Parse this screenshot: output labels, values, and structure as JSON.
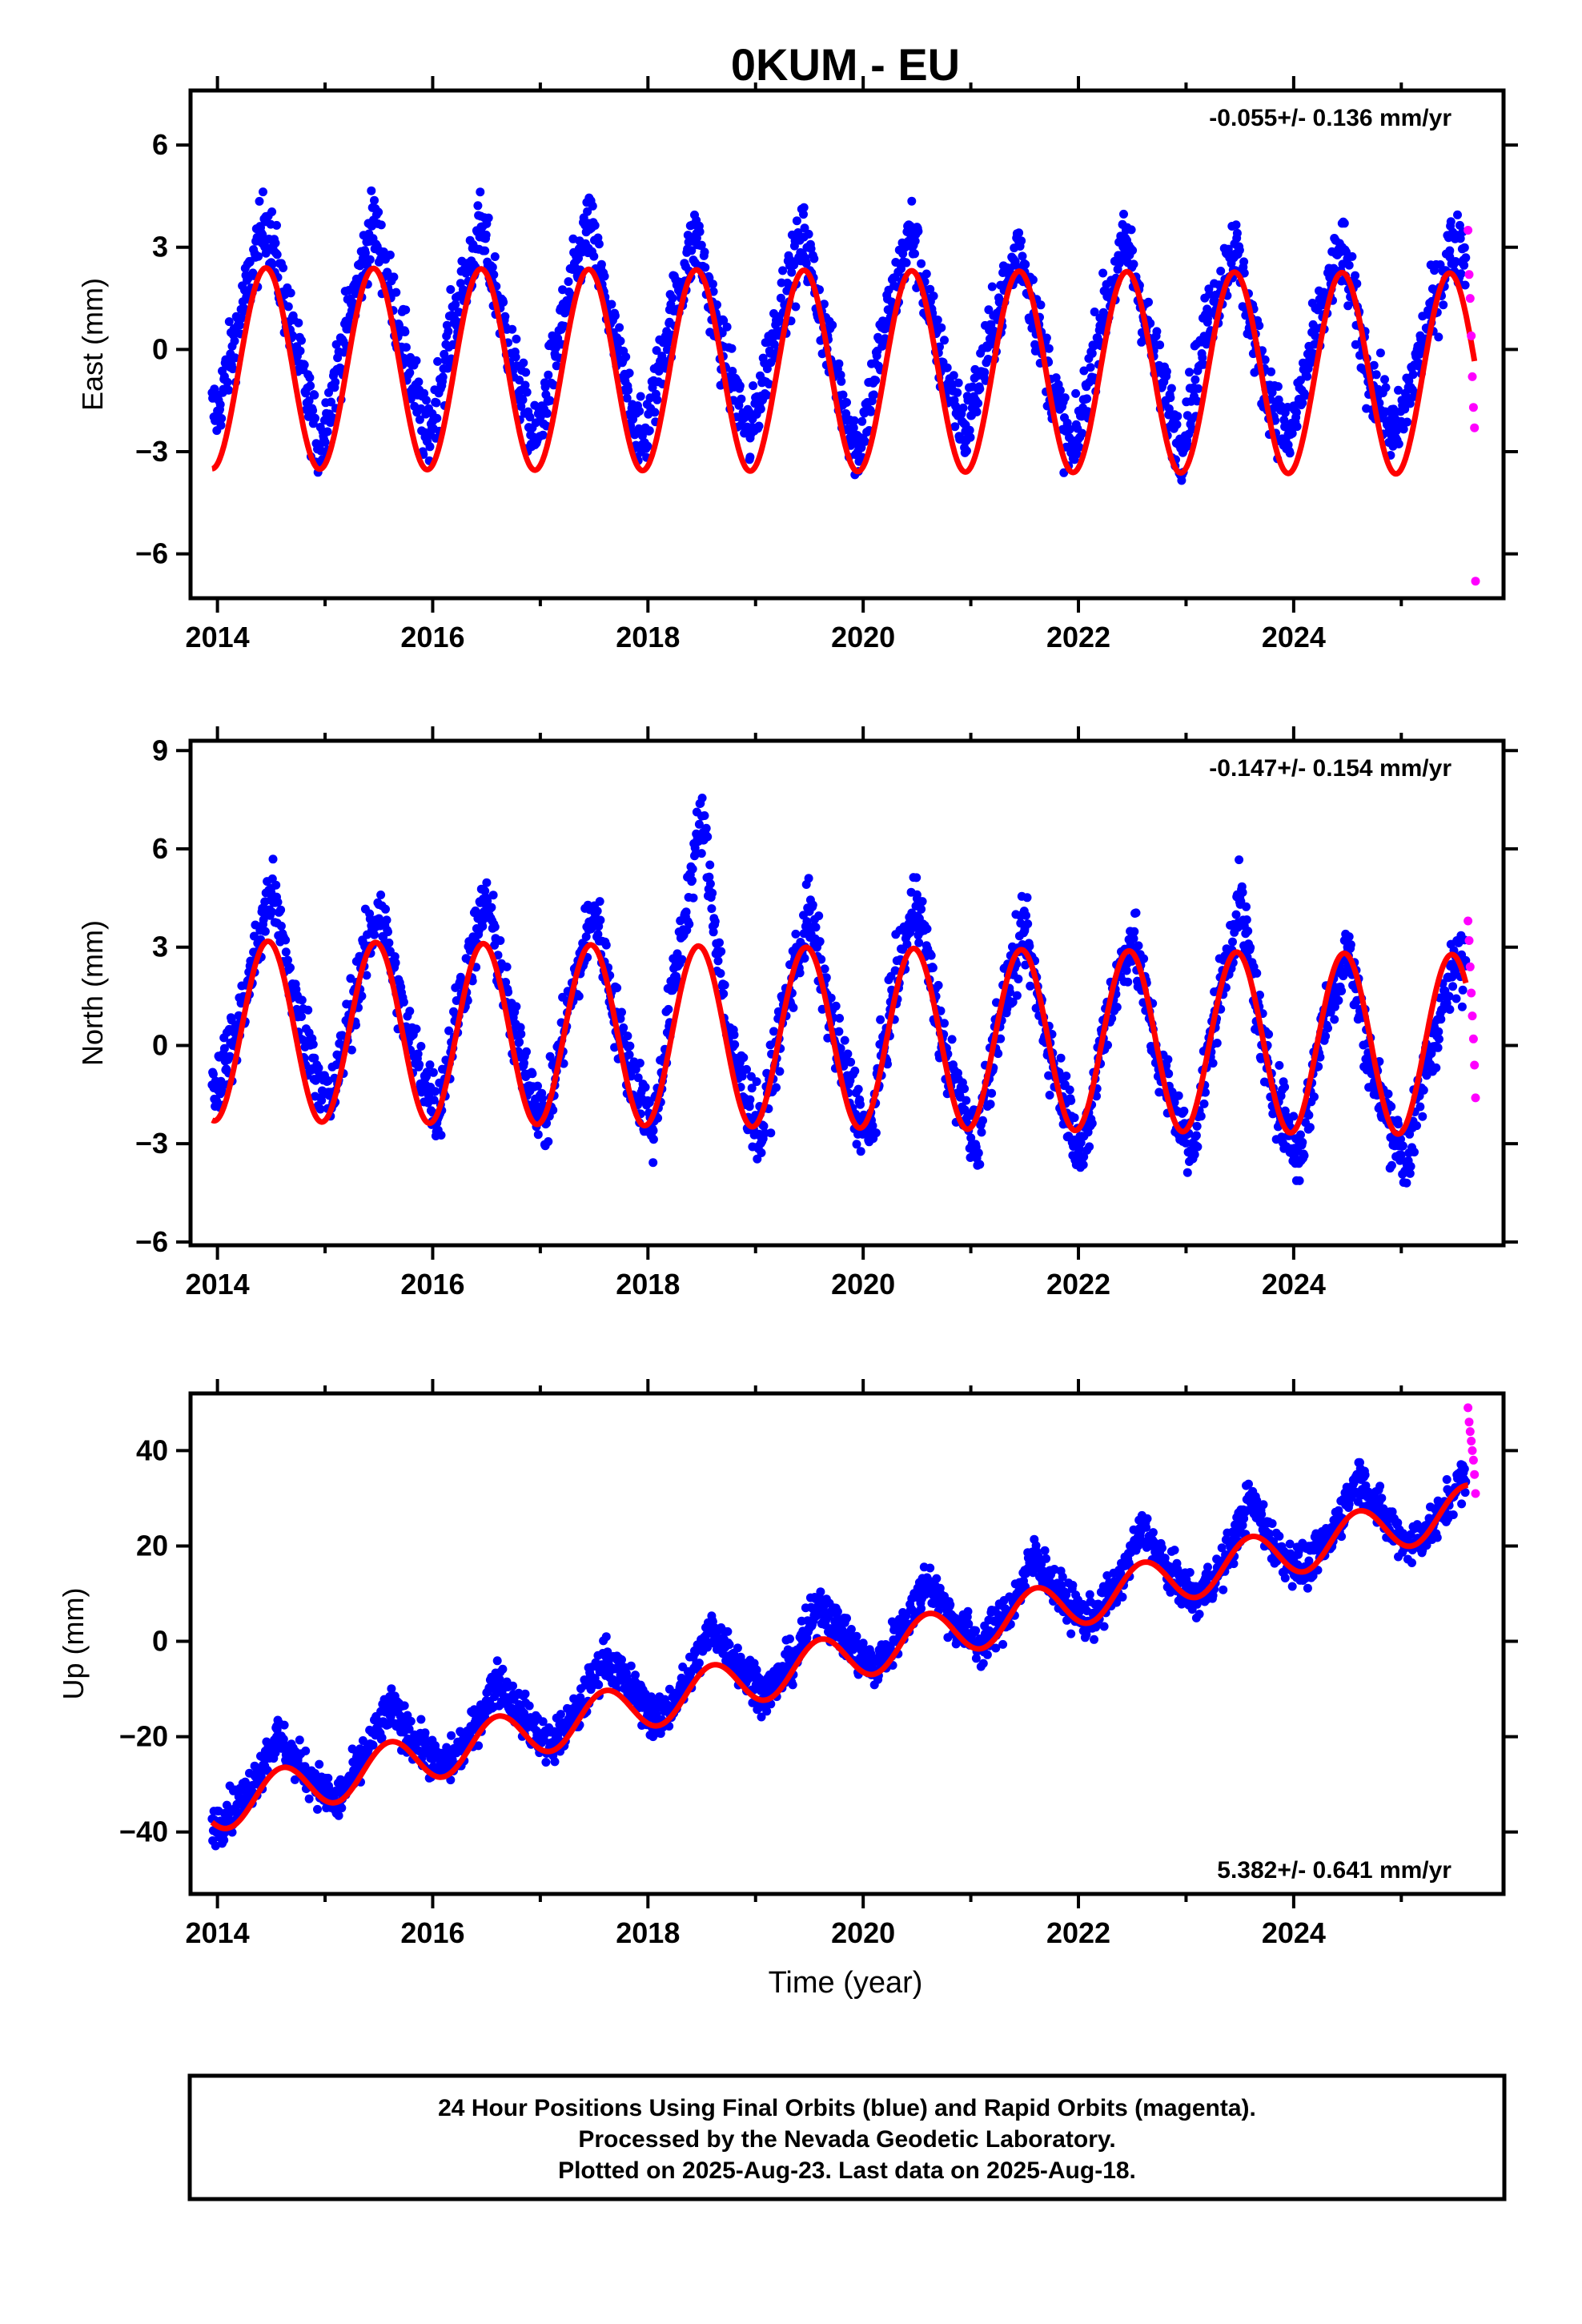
{
  "title": "0KUM - EU",
  "colors": {
    "final_orbits": "#0000ff",
    "rapid_orbits": "#ff00ff",
    "model": "#ff0000"
  },
  "x_axis": {
    "label": "Time (year)",
    "lim": [
      2013.75,
      2025.95
    ],
    "ticks": [
      2014,
      2016,
      2018,
      2020,
      2022,
      2024
    ],
    "tick_labels": [
      "2014",
      "2016",
      "2018",
      "2020",
      "2022",
      "2024"
    ]
  },
  "chart_data": [
    {
      "type": "scatter",
      "component": "east",
      "ylabel": "East (mm)",
      "ylim": [
        -7.3,
        7.6
      ],
      "yticks": [
        -6,
        -3,
        0,
        3,
        6
      ],
      "ytick_labels": [
        "−6",
        "−3",
        "0",
        "3",
        "6"
      ],
      "rate_text": "-0.055+/- 0.136 mm/yr",
      "rate_position": "top-right",
      "series": [
        {
          "name": "Final Orbits (blue)",
          "x": [
            2014.0,
            2014.2,
            2014.45,
            2014.7,
            2014.95,
            2015.2,
            2015.45,
            2015.7,
            2015.95,
            2016.2,
            2016.45,
            2016.7,
            2016.95,
            2017.2,
            2017.45,
            2017.7,
            2017.95,
            2018.2,
            2018.45,
            2018.7,
            2018.95,
            2019.2,
            2019.45,
            2019.7,
            2019.95,
            2020.2,
            2020.45,
            2020.7,
            2020.95,
            2021.2,
            2021.45,
            2021.7,
            2021.95,
            2022.2,
            2022.45,
            2022.7,
            2022.95,
            2023.2,
            2023.45,
            2023.7,
            2023.95,
            2024.2,
            2024.45,
            2024.7,
            2024.95,
            2025.2,
            2025.45
          ],
          "y": [
            -1.8,
            0.8,
            3.9,
            0.4,
            -2.9,
            0.6,
            3.8,
            0.5,
            -2.7,
            0.9,
            3.6,
            0.2,
            -2.8,
            0.7,
            3.7,
            0.1,
            -2.9,
            0.8,
            3.4,
            -0.2,
            -2.6,
            0.9,
            3.3,
            -0.3,
            -3.0,
            0.6,
            3.5,
            -0.1,
            -2.4,
            0.5,
            3.1,
            -0.4,
            -3.2,
            0.7,
            3.2,
            -0.2,
            -2.9,
            0.8,
            3.1,
            -0.6,
            -2.8,
            0.4,
            3.0,
            -0.8,
            -2.6,
            0.2,
            2.9
          ]
        },
        {
          "name": "Rapid Orbits (magenta)",
          "x": [
            2025.62,
            2025.63,
            2025.64,
            2025.65,
            2025.66,
            2025.67,
            2025.68,
            2025.69
          ],
          "y": [
            3.5,
            2.2,
            1.5,
            0.4,
            -0.8,
            -1.7,
            -2.3,
            -6.8
          ]
        },
        {
          "name": "Model fit",
          "amplitude": 2.95,
          "phase_peak": 0.45,
          "offset": 0.45,
          "rate": -0.055,
          "x_range": [
            2013.95,
            2025.68
          ]
        }
      ]
    },
    {
      "type": "scatter",
      "component": "north",
      "ylabel": "North (mm)",
      "ylim": [
        -6.1,
        9.3
      ],
      "yticks": [
        -6,
        -3,
        0,
        3,
        6,
        9
      ],
      "ytick_labels": [
        "−6",
        "−3",
        "0",
        "3",
        "6",
        "9"
      ],
      "rate_text": "-0.147+/- 0.154 mm/yr",
      "rate_position": "top-right",
      "series": [
        {
          "name": "Final Orbits (blue)",
          "x": [
            2014.0,
            2014.2,
            2014.5,
            2014.75,
            2015.05,
            2015.25,
            2015.5,
            2015.75,
            2016.05,
            2016.25,
            2016.5,
            2016.75,
            2017.05,
            2017.25,
            2017.5,
            2017.75,
            2018.05,
            2018.25,
            2018.5,
            2018.75,
            2019.05,
            2019.25,
            2019.5,
            2019.75,
            2020.05,
            2020.25,
            2020.5,
            2020.75,
            2021.05,
            2021.25,
            2021.5,
            2021.75,
            2022.05,
            2022.25,
            2022.5,
            2022.75,
            2023.05,
            2023.25,
            2023.5,
            2023.75,
            2024.05,
            2024.25,
            2024.5,
            2024.75,
            2025.05,
            2025.25,
            2025.5
          ],
          "y": [
            -1.2,
            0.6,
            4.8,
            0.9,
            -1.9,
            1.2,
            4.3,
            0.5,
            -2.1,
            1.4,
            4.5,
            0.3,
            -2.4,
            1.0,
            4.2,
            0.1,
            -2.6,
            2.1,
            7.0,
            0.2,
            -2.8,
            0.9,
            4.1,
            0.0,
            -2.9,
            1.1,
            4.6,
            -0.2,
            -3.1,
            0.7,
            3.5,
            -0.4,
            -3.4,
            0.8,
            3.4,
            -0.6,
            -3.3,
            0.5,
            4.5,
            -0.7,
            -3.5,
            0.4,
            3.0,
            -1.1,
            -3.6,
            -0.3,
            2.4
          ]
        },
        {
          "name": "Rapid Orbits (magenta)",
          "x": [
            2025.62,
            2025.63,
            2025.64,
            2025.65,
            2025.66,
            2025.67,
            2025.68,
            2025.69
          ],
          "y": [
            3.8,
            3.2,
            2.4,
            1.6,
            0.9,
            0.2,
            -0.6,
            -1.6
          ]
        },
        {
          "name": "Model fit",
          "amplitude": 2.75,
          "phase_peak": 0.47,
          "offset": 1.45,
          "rate": -0.147,
          "x_range": [
            2013.95,
            2025.6
          ]
        }
      ]
    },
    {
      "type": "scatter",
      "component": "up",
      "ylabel": "Up (mm)",
      "ylim": [
        -53,
        52
      ],
      "yticks": [
        -40,
        -20,
        0,
        20,
        40
      ],
      "ytick_labels": [
        "−40",
        "−20",
        "0",
        "20",
        "40"
      ],
      "rate_text": "5.382+/- 0.641 mm/yr",
      "rate_position": "bottom-right",
      "series": [
        {
          "name": "Final Orbits (blue)",
          "x": [
            2014.0,
            2014.25,
            2014.55,
            2014.8,
            2015.1,
            2015.3,
            2015.6,
            2015.85,
            2016.1,
            2016.35,
            2016.6,
            2016.85,
            2017.1,
            2017.35,
            2017.6,
            2017.85,
            2018.1,
            2018.35,
            2018.6,
            2018.85,
            2019.1,
            2019.35,
            2019.6,
            2019.85,
            2020.1,
            2020.35,
            2020.6,
            2020.85,
            2021.1,
            2021.35,
            2021.6,
            2021.85,
            2022.1,
            2022.35,
            2022.6,
            2022.85,
            2023.1,
            2023.35,
            2023.6,
            2023.85,
            2024.1,
            2024.35,
            2024.6,
            2024.85,
            2025.1,
            2025.35,
            2025.55
          ],
          "y": [
            -38,
            -33,
            -20,
            -27,
            -34,
            -27,
            -14,
            -21,
            -27,
            -20,
            -8,
            -16,
            -22,
            -15,
            -3,
            -10,
            -17,
            -9,
            3,
            -5,
            -11,
            -4,
            8,
            0,
            -6,
            2,
            13,
            4,
            -1,
            6,
            18,
            9,
            4,
            11,
            24,
            14,
            9,
            16,
            30,
            19,
            15,
            22,
            35,
            25,
            20,
            26,
            34
          ]
        },
        {
          "name": "Rapid Orbits (magenta)",
          "x": [
            2025.62,
            2025.63,
            2025.64,
            2025.65,
            2025.66,
            2025.67,
            2025.68,
            2025.69
          ],
          "y": [
            49,
            46,
            44,
            42,
            40,
            38,
            35,
            31
          ]
        },
        {
          "name": "Model fit",
          "amplitude": 5.0,
          "phase_peak": 0.6,
          "rate": 5.382,
          "x_range": [
            2013.95,
            2025.62
          ]
        }
      ]
    }
  ],
  "footer": {
    "line1": "24 Hour Positions Using Final Orbits (blue) and Rapid Orbits (magenta).",
    "line2": "Processed by the Nevada Geodetic Laboratory.",
    "line3": "Plotted on 2025-Aug-23. Last data on 2025-Aug-18."
  }
}
